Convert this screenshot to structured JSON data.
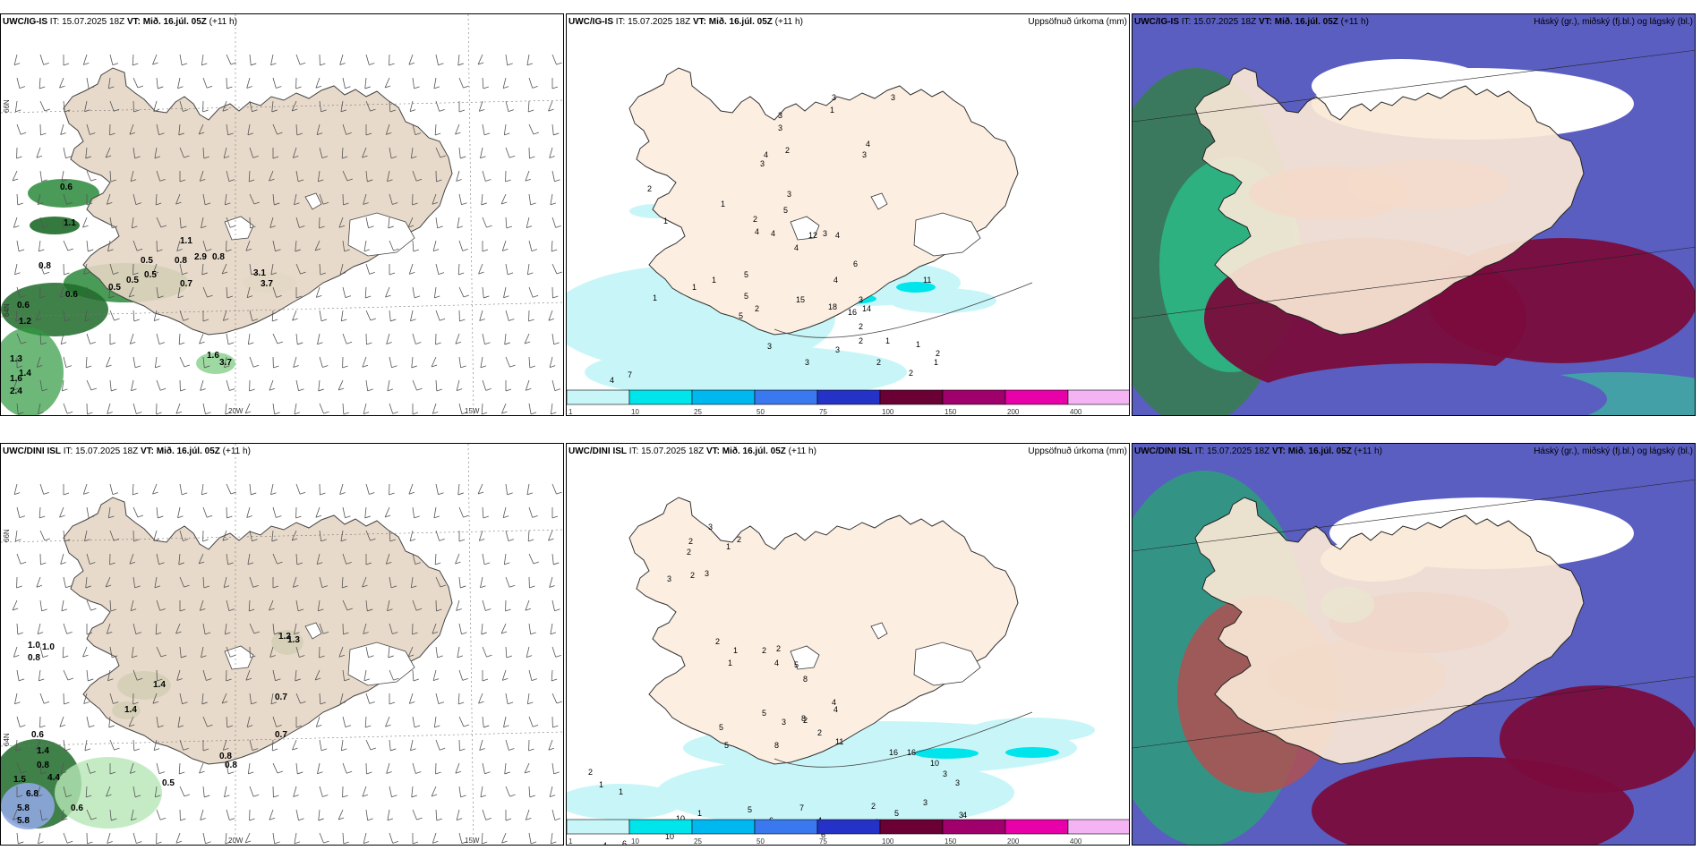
{
  "panels": [
    {
      "model": "UWC/IG-IS",
      "init": "15.07.2025 18Z",
      "valid": "Mið. 16.júl. 05Z",
      "lead": "(+11 h)",
      "type": "wind"
    },
    {
      "model": "UWC/IG-IS",
      "init": "15.07.2025 18Z",
      "valid": "Mið. 16.júl. 05Z",
      "lead": "(+11 h)",
      "type": "precip",
      "unit": "Uppsöfnuð úrkoma (mm)"
    },
    {
      "model": "UWC/IG-IS",
      "init": "15.07.2025 18Z",
      "valid": "Mið. 16.júl. 05Z",
      "lead": "(+11 h)",
      "type": "cloud",
      "unit": "Háský (gr.), miðský (fj.bl.) og lágský (bl.)"
    },
    {
      "model": "UWC/DINI ISL",
      "init": "15.07.2025 18Z",
      "valid": "Mið. 16.júl. 05Z",
      "lead": "(+11 h)",
      "type": "wind"
    },
    {
      "model": "UWC/DINI ISL",
      "init": "15.07.2025 18Z",
      "valid": "Mið. 16.júl. 05Z",
      "lead": "(+11 h)",
      "type": "precip",
      "unit": "Uppsöfnuð úrkoma (mm)"
    },
    {
      "model": "UWC/DINI ISL",
      "init": "15.07.2025 18Z",
      "valid": "Mið. 16.júl. 05Z",
      "lead": "(+11 h)",
      "type": "cloud",
      "unit": "Háský (gr.), miðský (fj.bl.) og lágský (bl.)"
    }
  ],
  "labels": {
    "it": "IT:",
    "vt": "VT:"
  },
  "axis_labels": {
    "lon_left": "20W",
    "lon_right": "15W",
    "lat_top": "66N",
    "lat_bottom": "64N"
  },
  "colorbar": {
    "ticks": [
      "1",
      "10",
      "25",
      "50",
      "75",
      "100",
      "150",
      "200",
      "400"
    ],
    "colors": [
      "#c8f6f8",
      "#00e4ec",
      "#00b8f0",
      "#3a78f0",
      "#2432c8",
      "#6a0034",
      "#a0006c",
      "#e800a8",
      "#f4b4f4"
    ]
  },
  "precip_values_top": [
    "2",
    "1",
    "1",
    "1",
    "2",
    "3",
    "3",
    "2",
    "1",
    "3",
    "3",
    "4",
    "3",
    "3",
    "4",
    "3",
    "12",
    "1",
    "2",
    "4",
    "5",
    "4",
    "4",
    "4",
    "15",
    "18",
    "16",
    "14",
    "6",
    "3",
    "1",
    "5",
    "5",
    "5",
    "3",
    "3",
    "3",
    "2",
    "2",
    "1",
    "1",
    "1",
    "2",
    "2",
    "2",
    "4",
    "7",
    "11",
    "3",
    "4"
  ],
  "precip_values_bottom": [
    "2",
    "2",
    "1",
    "2",
    "3",
    "3",
    "3",
    "2",
    "2",
    "1",
    "1",
    "2",
    "2",
    "5",
    "4",
    "8",
    "4",
    "4",
    "3",
    "2",
    "2",
    "5",
    "5",
    "5",
    "8",
    "8",
    "11",
    "16",
    "16",
    "10",
    "3",
    "3",
    "4",
    "4",
    "5",
    "3",
    "3",
    "5",
    "2",
    "2",
    "6",
    "4",
    "7",
    "6",
    "5",
    "3",
    "1",
    "10",
    "10",
    "6",
    "4",
    "2",
    "1",
    "1",
    "2"
  ],
  "wind_values_top": [
    "0.6",
    "1.1",
    "0.8",
    "1.1",
    "0.8",
    "0.5",
    "0.5",
    "0.6",
    "0.6",
    "1.2",
    "1.3",
    "1.4",
    "1.6",
    "2.4",
    "1.6",
    "3.7",
    "3.1",
    "3.7",
    "2.9",
    "0.8",
    "0.7",
    "0.5",
    "0.5"
  ],
  "wind_values_bottom": [
    "1.0",
    "1.0",
    "0.8",
    "0.6",
    "1.4",
    "0.8",
    "4.4",
    "1.5",
    "6.8",
    "5.8",
    "5.8",
    "0.6",
    "0.5",
    "0.7",
    "0.8",
    "0.8",
    "1.4",
    "1.2",
    "1.3",
    "0.7",
    "1.4"
  ]
}
